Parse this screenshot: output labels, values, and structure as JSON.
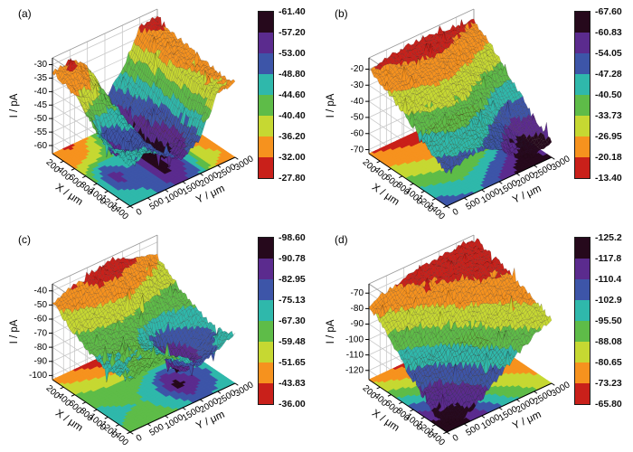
{
  "figure": {
    "background": "#ffffff"
  },
  "style": {
    "colormap_bands": [
      "#26091c",
      "#5b2b8e",
      "#3d55a8",
      "#2fb8ab",
      "#5ebc48",
      "#c6d832",
      "#f6921e",
      "#c9201a"
    ],
    "wall_grid": "#c8c8c8",
    "wall_edge": "#9a9a9a",
    "axis_color": "#000000"
  },
  "chart_data": [
    {
      "type": "surface3d",
      "label": "(a)",
      "xlabel": "X / μm",
      "ylabel": "Y / μm",
      "zlabel": "I / pA",
      "x_ticks": [
        200,
        400,
        600,
        800,
        1000,
        1200,
        1400
      ],
      "y_ticks": [
        0,
        500,
        1000,
        1500,
        2000,
        2500,
        3000
      ],
      "z_ticks": [
        -30,
        -35,
        -40,
        -45,
        -50,
        -55,
        -60
      ],
      "zlim": [
        -63,
        -27.5
      ],
      "colorbar": {
        "min": -61.4,
        "max": -27.8,
        "labels": [
          "-61.40",
          "-57.20",
          "-53.00",
          "-48.80",
          "-44.60",
          "-40.40",
          "-36.20",
          "-32.00",
          "-27.80"
        ]
      },
      "x": [
        0,
        200,
        400,
        600,
        800,
        1000,
        1200,
        1400
      ],
      "y": [
        0,
        500,
        1000,
        1500,
        2000,
        2500,
        3000
      ],
      "z": [
        [
          -33,
          -31,
          -36,
          -52,
          -44,
          -31,
          -30
        ],
        [
          -34,
          -33,
          -40,
          -56,
          -46,
          -33,
          -32
        ],
        [
          -36,
          -38,
          -43,
          -58,
          -48,
          -34,
          -33
        ],
        [
          -40,
          -50,
          -46,
          -60,
          -50,
          -35,
          -34
        ],
        [
          -44,
          -56,
          -48,
          -61,
          -52,
          -36,
          -35
        ],
        [
          -46,
          -53,
          -50,
          -60,
          -54,
          -37,
          -35
        ],
        [
          -47,
          -48,
          -51,
          -57,
          -52,
          -37,
          -36
        ],
        [
          -48,
          -46,
          -50,
          -54,
          -50,
          -36,
          -35
        ]
      ]
    },
    {
      "type": "surface3d",
      "label": "(b)",
      "xlabel": "X / μm",
      "ylabel": "Y / μm",
      "zlabel": "I / pA",
      "x_ticks": [
        200,
        400,
        600,
        800,
        1000,
        1200,
        1400
      ],
      "y_ticks": [
        0,
        500,
        1000,
        1500,
        2000,
        2500,
        3000
      ],
      "z_ticks": [
        -20,
        -30,
        -40,
        -50,
        -60,
        -70
      ],
      "zlim": [
        -72.5,
        -13
      ],
      "colorbar": {
        "min": -67.6,
        "max": -13.4,
        "labels": [
          "-67.60",
          "-60.83",
          "-54.05",
          "-47.28",
          "-40.50",
          "-33.73",
          "-26.95",
          "-20.18",
          "-13.40"
        ]
      },
      "x": [
        0,
        200,
        400,
        600,
        800,
        1000,
        1200,
        1400
      ],
      "y": [
        0,
        500,
        1000,
        1500,
        2000,
        2500,
        3000
      ],
      "z": [
        [
          -20,
          -18,
          -17,
          -16,
          -17,
          -18,
          -20
        ],
        [
          -24,
          -22,
          -20,
          -19,
          -20,
          -22,
          -25
        ],
        [
          -28,
          -26,
          -24,
          -23,
          -25,
          -28,
          -31
        ],
        [
          -33,
          -30,
          -28,
          -28,
          -31,
          -35,
          -38
        ],
        [
          -38,
          -35,
          -33,
          -34,
          -38,
          -44,
          -45
        ],
        [
          -43,
          -40,
          -38,
          -41,
          -47,
          -55,
          -52
        ],
        [
          -48,
          -45,
          -43,
          -48,
          -56,
          -64,
          -58
        ],
        [
          -52,
          -49,
          -47,
          -53,
          -62,
          -67,
          -62
        ]
      ]
    },
    {
      "type": "surface3d",
      "label": "(c)",
      "xlabel": "X / μm",
      "ylabel": "Y / μm",
      "zlabel": "I / pA",
      "x_ticks": [
        200,
        400,
        600,
        800,
        1000,
        1200,
        1400
      ],
      "y_ticks": [
        0,
        500,
        1000,
        1500,
        2000,
        2500,
        3000
      ],
      "z_ticks": [
        -40,
        -50,
        -60,
        -70,
        -80,
        -90,
        -100
      ],
      "zlim": [
        -103,
        -35
      ],
      "colorbar": {
        "min": -98.6,
        "max": -36.0,
        "labels": [
          "-98.60",
          "-90.78",
          "-82.95",
          "-75.13",
          "-67.30",
          "-59.48",
          "-51.65",
          "-43.83",
          "-36.00"
        ]
      },
      "x": [
        0,
        200,
        400,
        600,
        800,
        1000,
        1200,
        1400
      ],
      "y": [
        0,
        500,
        1000,
        1500,
        2000,
        2500,
        3000
      ],
      "z": [
        [
          -48,
          -44,
          -40,
          -38,
          -40,
          -44,
          -50
        ],
        [
          -54,
          -50,
          -46,
          -44,
          -47,
          -52,
          -56
        ],
        [
          -60,
          -57,
          -54,
          -52,
          -56,
          -60,
          -62
        ],
        [
          -65,
          -63,
          -61,
          -63,
          -70,
          -68,
          -66
        ],
        [
          -68,
          -66,
          -65,
          -72,
          -88,
          -78,
          -70
        ],
        [
          -70,
          -68,
          -67,
          -75,
          -95,
          -84,
          -73
        ],
        [
          -68,
          -66,
          -65,
          -72,
          -86,
          -80,
          -71
        ],
        [
          -66,
          -64,
          -62,
          -68,
          -78,
          -74,
          -68
        ]
      ]
    },
    {
      "type": "surface3d",
      "label": "(d)",
      "xlabel": "X / μm",
      "ylabel": "Y / μm",
      "zlabel": "I / pA",
      "x_ticks": [
        200,
        400,
        600,
        800,
        1000,
        1200,
        1400
      ],
      "y_ticks": [
        0,
        500,
        1000,
        1500,
        2000,
        2500,
        3000
      ],
      "z_ticks": [
        -70,
        -80,
        -90,
        -100,
        -110,
        -120
      ],
      "zlim": [
        -126,
        -64
      ],
      "colorbar": {
        "min": -125.2,
        "max": -65.8,
        "labels": [
          "-125.2",
          "-117.8",
          "-110.4",
          "-102.9",
          "-95.50",
          "-88.08",
          "-80.65",
          "-73.23",
          "-65.80"
        ]
      },
      "x": [
        0,
        200,
        400,
        600,
        800,
        1000,
        1200,
        1400
      ],
      "y": [
        0,
        500,
        1000,
        1500,
        2000,
        2500,
        3000
      ],
      "z": [
        [
          -78,
          -74,
          -71,
          -69,
          -68,
          -67,
          -67
        ],
        [
          -84,
          -80,
          -76,
          -72,
          -70,
          -69,
          -68
        ],
        [
          -92,
          -87,
          -82,
          -76,
          -73,
          -71,
          -70
        ],
        [
          -100,
          -95,
          -89,
          -82,
          -77,
          -74,
          -72
        ],
        [
          -108,
          -103,
          -96,
          -88,
          -82,
          -78,
          -75
        ],
        [
          -115,
          -111,
          -104,
          -95,
          -87,
          -82,
          -78
        ],
        [
          -120,
          -117,
          -110,
          -101,
          -92,
          -86,
          -81
        ],
        [
          -123,
          -121,
          -115,
          -106,
          -97,
          -90,
          -84
        ]
      ]
    }
  ]
}
